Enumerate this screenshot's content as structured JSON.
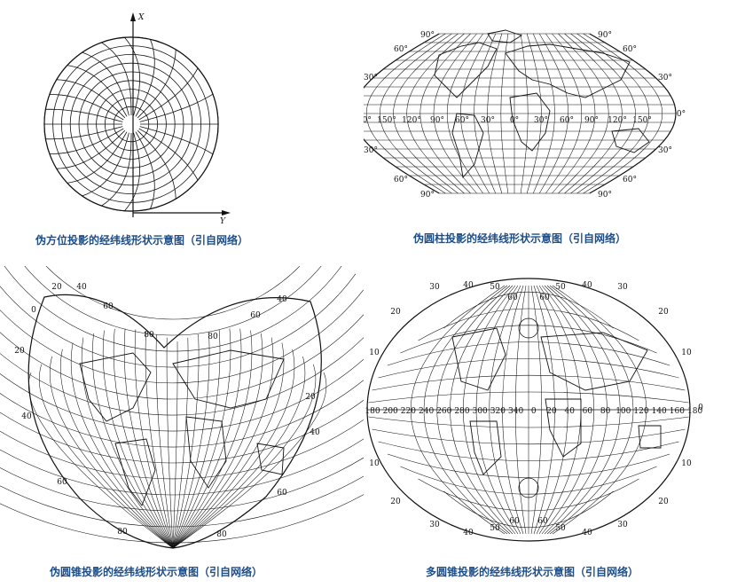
{
  "panels": [
    {
      "id": "pseudo-azimuthal",
      "caption": "伪方位投影的经纬线形状示意图（引自网络）",
      "axis_x_label": "X",
      "axis_y_label": "Y"
    },
    {
      "id": "pseudo-cylindrical",
      "caption": "伪圆柱投影的经纬线形状示意图（引自网络）",
      "lat_labels": [
        "90°",
        "60°",
        "30°",
        "0°"
      ],
      "lon_labels": [
        "180°",
        "150°",
        "120°",
        "90°",
        "60°",
        "30°",
        "0°",
        "30°",
        "60°",
        "90°",
        "120°",
        "150°"
      ]
    },
    {
      "id": "pseudo-conic",
      "caption": "伪圆锥投影的经纬线形状示意图（引自网络）",
      "labels": [
        "20",
        "40",
        "60",
        "80",
        "0",
        "20",
        "40",
        "60",
        "80",
        "40",
        "60",
        "80",
        "20",
        "40",
        "60",
        "80"
      ]
    },
    {
      "id": "polyconic",
      "caption": "多圆锥投影的经纬线形状示意图（引自网络）",
      "lon_labels": [
        "180",
        "200",
        "220",
        "240",
        "260",
        "280",
        "300",
        "320",
        "340",
        "0",
        "20",
        "40",
        "60",
        "80",
        "100",
        "120",
        "140",
        "160",
        "180"
      ],
      "lat_labels_top": [
        "30",
        "40",
        "50",
        "60",
        "60",
        "50",
        "40",
        "30"
      ],
      "lat_labels_side": [
        "20",
        "10",
        "0",
        "10",
        "20"
      ],
      "lat_labels_bottom": [
        "30",
        "40",
        "50",
        "60",
        "60",
        "50",
        "40",
        "30"
      ]
    }
  ]
}
